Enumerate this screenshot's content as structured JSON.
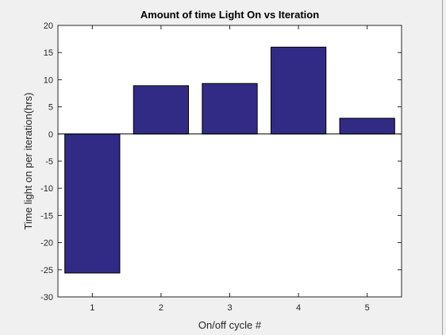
{
  "chart_data": {
    "type": "bar",
    "title": "Amount of time Light On vs Iteration",
    "xlabel": "On/off cycle #",
    "ylabel": "Time light on per iteration(hrs)",
    "categories": [
      "1",
      "2",
      "3",
      "4",
      "5"
    ],
    "values": [
      -25.6,
      8.9,
      9.3,
      16.0,
      2.9
    ],
    "ylim": [
      -30,
      20
    ],
    "yticks": [
      -30,
      -25,
      -20,
      -15,
      -10,
      -5,
      0,
      5,
      10,
      15,
      20
    ],
    "ytick_labels": [
      "-30",
      "-25",
      "-20",
      "-15",
      "-10",
      "-5",
      "0",
      "5",
      "10",
      "15",
      "20"
    ],
    "grid": false,
    "bar_color": "#312b86",
    "bar_edge_color": "#000000",
    "background_color": "#ffffff",
    "figure_color": "#f0f0f0"
  }
}
